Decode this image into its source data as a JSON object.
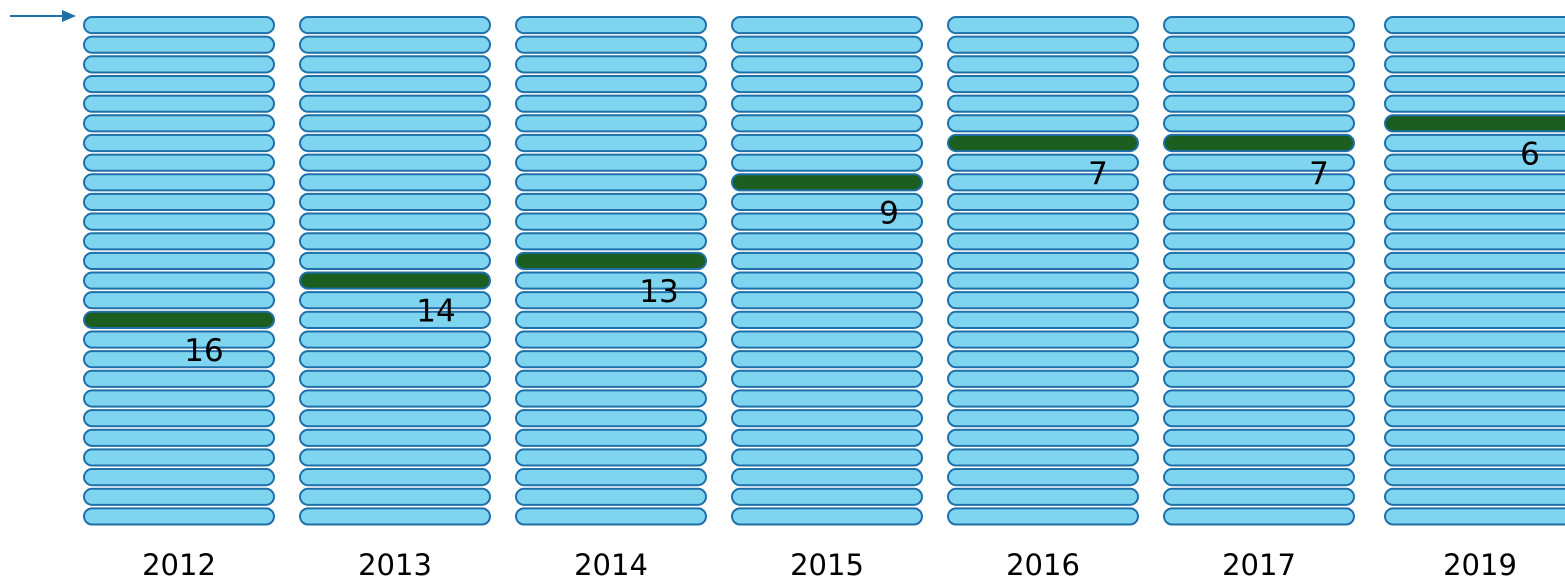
{
  "chart_data": {
    "type": "bar",
    "title": "",
    "xlabel": "",
    "ylabel": "",
    "categories": [
      "2012",
      "2013",
      "2014",
      "2015",
      "2016",
      "2017",
      "2019"
    ],
    "values": [
      16,
      14,
      13,
      9,
      7,
      7,
      6
    ],
    "slot_counts": [
      26,
      26,
      26,
      26,
      26,
      26,
      26
    ],
    "grid": false,
    "legend": "none",
    "colors": {
      "slot_fill": "#7FD4F0",
      "slot_stroke": "#1F6FA8",
      "highlight_fill": "#1B5E20",
      "highlight_stroke": "#1F6FA8",
      "arrow": "#1F6FA8",
      "text": "#000000"
    }
  }
}
